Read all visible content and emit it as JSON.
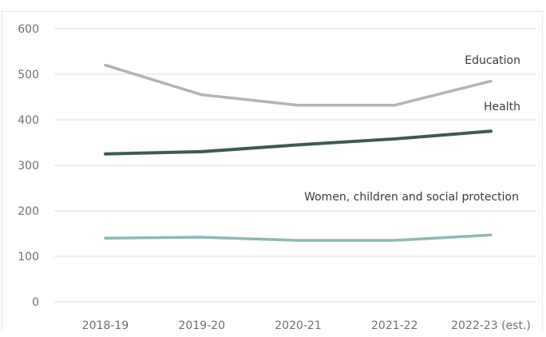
{
  "chart_data": {
    "type": "line",
    "title": "",
    "xlabel": "",
    "ylabel": "",
    "ylim": [
      0,
      600
    ],
    "yticks": [
      0,
      100,
      200,
      300,
      400,
      500,
      600
    ],
    "categories": [
      "2018-19",
      "2019-20",
      "2020-21",
      "2021-22",
      "2022-23 (est.)"
    ],
    "grid": true,
    "legend": "inline labels",
    "series": [
      {
        "name": "Education",
        "color": "#b3b3b3",
        "values": [
          520,
          455,
          432,
          432,
          485
        ]
      },
      {
        "name": "Health",
        "color": "#3f5a50",
        "values": [
          325,
          330,
          345,
          358,
          375
        ]
      },
      {
        "name": "Women, children and social protection",
        "color": "#8fb8b5",
        "values": [
          140,
          142,
          135,
          135,
          147
        ]
      }
    ]
  }
}
